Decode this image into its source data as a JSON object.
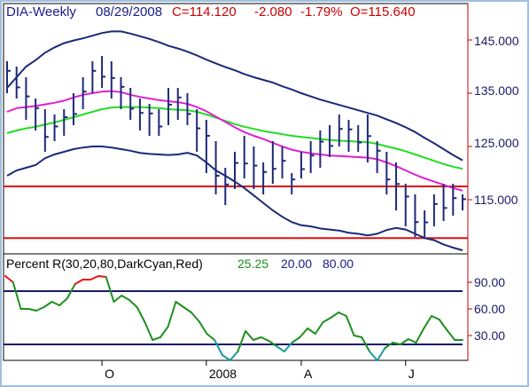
{
  "header": {
    "symbol": "DIA-Weekly",
    "date": "08/29/2008",
    "close": "C=114.120",
    "change": "-2.080",
    "change_pct": "-1.79%",
    "open": "O=115.640"
  },
  "colors": {
    "frame": "#9fc0df",
    "price_axis": "#cc0000",
    "bars": "#1f2a78",
    "band": "#1a2a78",
    "ma_fast": "#e020d0",
    "ma_slow": "#22dd22",
    "support": "#dd1111",
    "osc_green": "#1f8f1f",
    "osc_red": "#ee1111",
    "osc_cyan": "#1a9aa0",
    "osc_levels": "#1a1a6a",
    "label_red": "#cc0000",
    "label_blue": "#1a1a8a",
    "label_green": "#1a8f1a"
  },
  "chart_data": [
    {
      "type": "ohlc",
      "price_ylim": [
        106,
        150
      ],
      "y_ticks": [
        "145.000",
        "135.000",
        "125.000",
        "115.000"
      ],
      "x_tick_labels": [
        "O",
        "2008",
        "A",
        "J"
      ],
      "x_tick_weeks": [
        10,
        21,
        31,
        42
      ],
      "week_count": 49,
      "bars": {
        "high": [
          141,
          140,
          138,
          134,
          132,
          131,
          132,
          135,
          138,
          141,
          142,
          141,
          138,
          136,
          134,
          133,
          132,
          136,
          136,
          135,
          132,
          130,
          126,
          121,
          124,
          127,
          125,
          122,
          126,
          125,
          120,
          124,
          126,
          128,
          129,
          131,
          130,
          129,
          131,
          126,
          124,
          122,
          118,
          116,
          113,
          116,
          118,
          118,
          116
        ],
        "low": [
          135,
          134,
          130,
          128,
          124,
          126,
          127,
          129,
          132,
          135,
          136,
          134,
          132,
          130,
          128,
          127,
          127,
          129,
          130,
          129,
          124,
          120,
          116,
          114,
          117,
          119,
          117,
          116,
          118,
          119,
          116,
          119,
          120,
          121,
          123,
          125,
          124,
          124,
          122,
          120,
          116,
          113,
          110,
          108,
          108,
          110,
          111,
          112,
          113
        ]
      },
      "bands": {
        "upper": [
          136,
          138,
          140,
          141.2,
          142.6,
          143.6,
          144.4,
          144.9,
          145.3,
          145.8,
          146.3,
          146.6,
          146.6,
          146.2,
          145.7,
          145.2,
          144.6,
          143.9,
          143.4,
          142.8,
          142.1,
          141.3,
          140.6,
          139.9,
          139.3,
          138.6,
          138,
          137.5,
          137,
          136.3,
          135.7,
          135,
          134.4,
          133.8,
          133.3,
          132.8,
          132.3,
          131.8,
          131.3,
          130.8,
          130.1,
          129.4,
          128.6,
          127.7,
          126.6,
          125.6,
          124.5,
          123.4,
          122.4
        ],
        "lower": [
          119.5,
          120.5,
          121,
          121.5,
          122.8,
          123.5,
          124,
          124.5,
          124.8,
          125,
          125,
          124.8,
          124.5,
          124.2,
          123.8,
          123.6,
          123.5,
          123.4,
          123.5,
          123.8,
          123.3,
          122,
          120.5,
          119.5,
          118.4,
          117.2,
          115.8,
          114.4,
          113,
          111.8,
          110.8,
          110.2,
          110,
          109.6,
          109.4,
          109.2,
          108.8,
          108.6,
          108.3,
          108.6,
          109.3,
          109.7,
          109.4,
          108.6,
          107.8,
          107.4,
          106.6,
          106,
          105.5
        ]
      },
      "moving_averages": [
        {
          "color": "magenta",
          "values": [
            131.5,
            132.2,
            132.4,
            132.6,
            132.9,
            133.2,
            133.6,
            134.2,
            134.7,
            135,
            135.3,
            135.4,
            135.2,
            134.7,
            134.3,
            134,
            133.7,
            133.5,
            133.3,
            133,
            132.4,
            131.6,
            130.6,
            129.6,
            128.6,
            127.7,
            127,
            126.4,
            125.7,
            125,
            124.4,
            124,
            123.7,
            123.5,
            123.3,
            123.2,
            123.1,
            123,
            122.9,
            122.6,
            122,
            121.3,
            120.5,
            119.7,
            119,
            118.4,
            117.8,
            117.2,
            116.7
          ]
        },
        {
          "color": "green",
          "values": [
            127.5,
            128,
            128.4,
            128.7,
            129.1,
            129.5,
            130,
            130.5,
            131,
            131.5,
            132,
            132.3,
            132.4,
            132.4,
            132.4,
            132.3,
            132.2,
            132,
            131.9,
            131.8,
            131.5,
            131,
            130.4,
            129.8,
            129.2,
            128.7,
            128.3,
            127.9,
            127.6,
            127.3,
            127,
            126.8,
            126.6,
            126.4,
            126.2,
            126.1,
            126,
            125.9,
            125.8,
            125.5,
            125,
            124.6,
            124.1,
            123.5,
            122.9,
            122.3,
            121.7,
            121.2,
            120.8
          ]
        }
      ],
      "horizontal_lines": [
        117.5,
        107.8
      ]
    },
    {
      "type": "line",
      "title": "Percent R(30,20,80,DarkCyan,Red)",
      "readouts": [
        "25.25",
        "20.00",
        "80.00"
      ],
      "ylim": [
        0,
        100
      ],
      "y_ticks": [
        "90.00",
        "60.00",
        "30.00"
      ],
      "levels": [
        80,
        20
      ],
      "values": [
        97,
        90,
        60,
        60,
        58,
        62,
        68,
        64,
        72,
        88,
        93,
        93,
        97,
        96,
        68,
        75,
        70,
        62,
        45,
        25,
        28,
        40,
        68,
        62,
        56,
        46,
        32,
        25,
        8,
        2,
        12,
        35,
        25,
        28,
        24,
        18,
        12,
        22,
        28,
        38,
        32,
        45,
        50,
        56,
        52,
        30,
        28,
        12,
        2,
        16,
        22,
        20,
        26,
        22,
        38,
        52,
        48,
        36,
        25,
        25
      ]
    }
  ]
}
